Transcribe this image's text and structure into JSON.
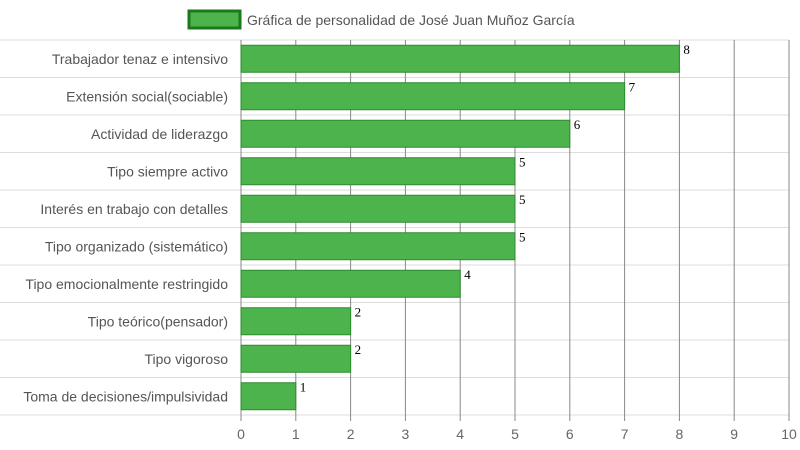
{
  "chart_data": {
    "type": "bar",
    "orientation": "horizontal",
    "legend": "Gráfica de personalidad de José Juan Muñoz García",
    "legend_position": "top",
    "categories": [
      "Trabajador tenaz e intensivo",
      "Extensión social(sociable)",
      "Actividad de liderazgo",
      "Tipo siempre activo",
      "Interés en trabajo con detalles",
      "Tipo organizado (sistemático)",
      "Tipo emocionalmente restringido",
      "Tipo teórico(pensador)",
      "Tipo vigoroso",
      "Toma de decisiones/impulsividad"
    ],
    "series": [
      {
        "name": "Gráfica de personalidad de José Juan Muñoz García",
        "values": [
          8,
          7,
          6,
          5,
          5,
          5,
          4,
          2,
          2,
          1
        ],
        "data_labels": [
          "8",
          "7",
          "6",
          "5",
          "5",
          "5",
          "4",
          "2",
          "2",
          "1"
        ]
      }
    ],
    "xlim": [
      0,
      10
    ],
    "x_ticks": [
      "0",
      "1",
      "2",
      "3",
      "4",
      "5",
      "6",
      "7",
      "8",
      "9",
      "10"
    ],
    "grid": true
  },
  "colors": {
    "bar_fill": "#4db34d",
    "bar_border": "#2e8b2e",
    "legend_border": "#1a7a1a",
    "grid": "#dddddd",
    "grid_vertical": "#888888"
  }
}
